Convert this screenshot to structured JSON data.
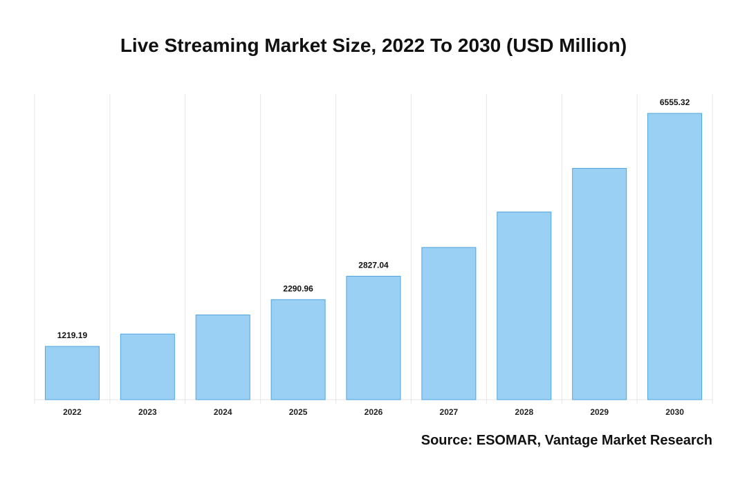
{
  "title": "Live Streaming Market Size, 2022 To 2030 (USD Million)",
  "source": "Source: ESOMAR, Vantage Market Research",
  "colors": {
    "bar_fill": "#99d0f4",
    "bar_stroke": "#4fa3de",
    "grid": "#e6e6e6"
  },
  "chart_data": {
    "type": "bar",
    "categories": [
      "2022",
      "2023",
      "2024",
      "2025",
      "2026",
      "2027",
      "2028",
      "2029",
      "2030"
    ],
    "values": [
      1219.19,
      1502,
      1940,
      2290.96,
      2827.04,
      3485,
      4297,
      5297,
      6555.32
    ],
    "data_labels": [
      "1219.19",
      "",
      "",
      "2290.96",
      "2827.04",
      "",
      "",
      "",
      "6555.32"
    ],
    "ylim": [
      0,
      7000
    ],
    "xlabel": "",
    "ylabel": "",
    "grid": "vertical"
  }
}
